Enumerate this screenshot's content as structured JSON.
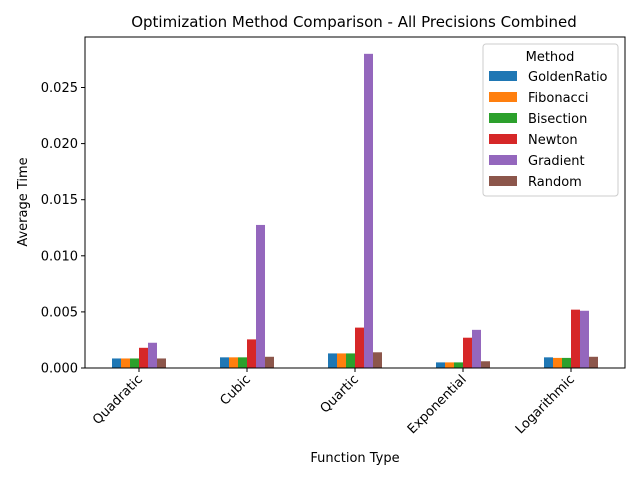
{
  "chart_data": {
    "type": "bar",
    "title": "Optimization Method Comparison - All Precisions Combined",
    "xlabel": "Function Type",
    "ylabel": "Average Time",
    "categories": [
      "Quadratic",
      "Cubic",
      "Quartic",
      "Exponential",
      "Logarithmic"
    ],
    "ylim": [
      0,
      0.0295
    ],
    "yticks": [
      0.0,
      0.005,
      0.01,
      0.015,
      0.02,
      0.025
    ],
    "ytick_labels": [
      "0.000",
      "0.005",
      "0.010",
      "0.015",
      "0.020",
      "0.025"
    ],
    "legend_title": "Method",
    "legend_position": "top-right",
    "grid": false,
    "series": [
      {
        "name": "GoldenRatio",
        "color": "#1f77b4",
        "values": [
          0.00085,
          0.00095,
          0.0013,
          0.0005,
          0.00095
        ]
      },
      {
        "name": "Fibonacci",
        "color": "#ff7f0e",
        "values": [
          0.00085,
          0.00095,
          0.0013,
          0.0005,
          0.0009
        ]
      },
      {
        "name": "Bisection",
        "color": "#2ca02c",
        "values": [
          0.00085,
          0.00095,
          0.0013,
          0.0005,
          0.0009
        ]
      },
      {
        "name": "Newton",
        "color": "#d62728",
        "values": [
          0.0018,
          0.00255,
          0.0036,
          0.0027,
          0.0052
        ]
      },
      {
        "name": "Gradient",
        "color": "#9467bd",
        "values": [
          0.00225,
          0.01275,
          0.028,
          0.0034,
          0.0051
        ]
      },
      {
        "name": "Random",
        "color": "#8c564b",
        "values": [
          0.00085,
          0.001,
          0.0014,
          0.0006,
          0.001
        ]
      }
    ]
  }
}
